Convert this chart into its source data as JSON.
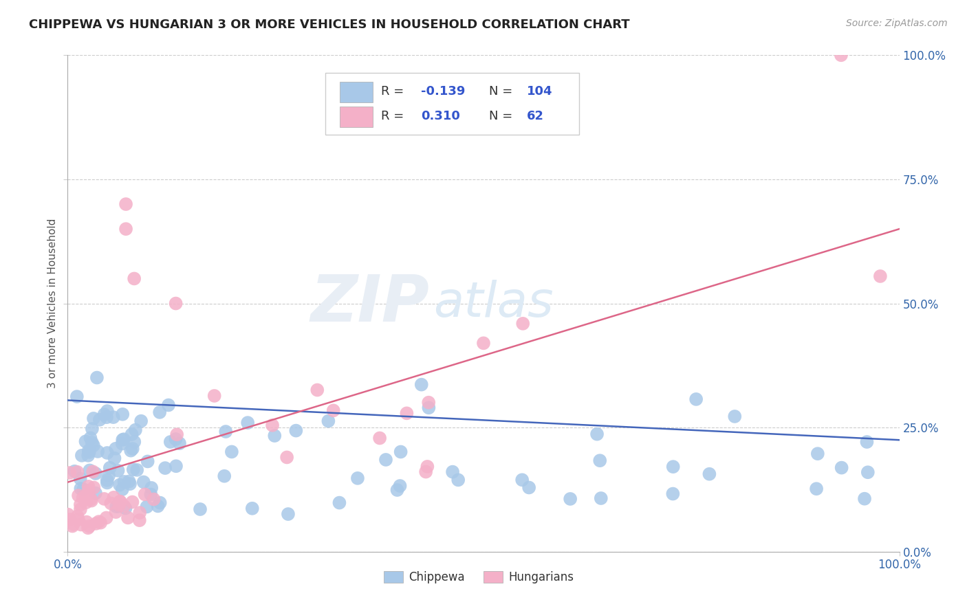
{
  "title": "CHIPPEWA VS HUNGARIAN 3 OR MORE VEHICLES IN HOUSEHOLD CORRELATION CHART",
  "source_text": "Source: ZipAtlas.com",
  "ylabel": "3 or more Vehicles in Household",
  "xlim": [
    0.0,
    1.0
  ],
  "ylim": [
    0.0,
    1.0
  ],
  "ytick_vals": [
    0.0,
    0.25,
    0.5,
    0.75,
    1.0
  ],
  "ytick_labels": [
    "0.0%",
    "25.0%",
    "50.0%",
    "75.0%",
    "100.0%"
  ],
  "chippewa_color": "#a8c8e8",
  "hungarian_color": "#f4b0c8",
  "chippewa_line_color": "#4466bb",
  "hungarian_line_color": "#dd6688",
  "grid_color": "#cccccc",
  "background_color": "#ffffff",
  "watermark_zip": "ZIP",
  "watermark_atlas": "atlas",
  "legend_R1": "-0.139",
  "legend_N1": "104",
  "legend_R2": "0.310",
  "legend_N2": "62",
  "chip_line_x0": 0.0,
  "chip_line_y0": 0.305,
  "chip_line_x1": 1.0,
  "chip_line_y1": 0.225,
  "hung_line_x0": 0.0,
  "hung_line_y0": 0.14,
  "hung_line_x1": 1.0,
  "hung_line_y1": 0.65
}
